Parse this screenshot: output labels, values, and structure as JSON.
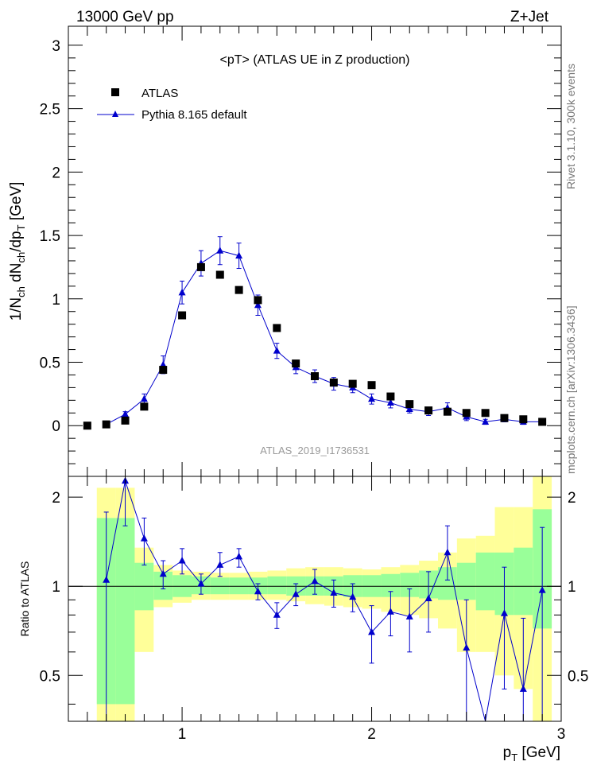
{
  "header": {
    "left": "13000 GeV pp",
    "right": "Z+Jet"
  },
  "side_text": {
    "rivet": "Rivet 3.1.10,  300k events",
    "mcplots": "mcplots.cern.ch [arXiv:1306.3436]"
  },
  "chart_data": [
    {
      "type": "scatter",
      "title": "<pT> (ATLAS UE in Z production)",
      "watermark": "ATLAS_2019_I1736531",
      "ylabel": "1/N_ch dN_ch/dp_T [GeV]",
      "xlim": [
        0.4,
        3.0
      ],
      "ylim": [
        -0.4,
        3.15
      ],
      "yticks": [
        "0",
        "0.5",
        "1",
        "1.5",
        "2",
        "2.5",
        "3"
      ],
      "legend_position": "top-left",
      "series": [
        {
          "name": "ATLAS",
          "marker": "square",
          "color": "#000000",
          "x": [
            0.5,
            0.6,
            0.7,
            0.8,
            0.9,
            1.0,
            1.1,
            1.2,
            1.3,
            1.4,
            1.5,
            1.6,
            1.7,
            1.8,
            1.9,
            2.0,
            2.1,
            2.2,
            2.3,
            2.4,
            2.5,
            2.6,
            2.7,
            2.8,
            2.9
          ],
          "y": [
            0.0,
            0.01,
            0.04,
            0.15,
            0.44,
            0.87,
            1.25,
            1.19,
            1.07,
            0.99,
            0.77,
            0.49,
            0.39,
            0.34,
            0.33,
            0.32,
            0.23,
            0.17,
            0.12,
            0.11,
            0.1,
            0.1,
            0.06,
            0.05,
            0.03
          ]
        },
        {
          "name": "Pythia 8.165 default",
          "marker": "triangle",
          "color": "#0000cc",
          "x": [
            0.6,
            0.7,
            0.8,
            0.9,
            1.0,
            1.1,
            1.2,
            1.3,
            1.4,
            1.5,
            1.6,
            1.7,
            1.8,
            1.9,
            2.0,
            2.1,
            2.2,
            2.3,
            2.4,
            2.5,
            2.6,
            2.7,
            2.8,
            2.9
          ],
          "y": [
            0.01,
            0.09,
            0.21,
            0.48,
            1.05,
            1.28,
            1.38,
            1.34,
            0.95,
            0.59,
            0.46,
            0.39,
            0.33,
            0.3,
            0.21,
            0.18,
            0.13,
            0.11,
            0.14,
            0.07,
            0.03,
            0.05,
            0.03,
            0.03
          ],
          "yerr": [
            0.01,
            0.02,
            0.04,
            0.07,
            0.09,
            0.1,
            0.11,
            0.1,
            0.08,
            0.06,
            0.05,
            0.05,
            0.05,
            0.04,
            0.04,
            0.04,
            0.03,
            0.03,
            0.04,
            0.03,
            0.02,
            0.02,
            0.02,
            0.02
          ]
        }
      ]
    },
    {
      "type": "line",
      "ylabel": "Ratio to ATLAS",
      "xlabel": "p_T [GeV]",
      "xlim": [
        0.4,
        3.0
      ],
      "ylim": [
        0.35,
        2.35
      ],
      "xticks": [
        "1",
        "2",
        "3"
      ],
      "yticks": [
        "0.5",
        "1",
        "2"
      ],
      "bands": {
        "bins": [
          0.55,
          0.65,
          0.75,
          0.85,
          0.95,
          1.05,
          1.15,
          1.25,
          1.35,
          1.45,
          1.55,
          1.65,
          1.75,
          1.85,
          1.95,
          2.05,
          2.15,
          2.25,
          2.35,
          2.45,
          2.55,
          2.65,
          2.75,
          2.85,
          2.95
        ],
        "green_color": "#99ff99",
        "yellow_color": "#ffff99",
        "green_low": [
          0.4,
          0.4,
          0.83,
          0.9,
          0.92,
          0.94,
          0.94,
          0.94,
          0.94,
          0.94,
          0.93,
          0.93,
          0.93,
          0.92,
          0.92,
          0.92,
          0.92,
          0.91,
          0.9,
          0.9,
          0.83,
          0.8,
          0.8,
          0.72
        ],
        "green_high": [
          1.7,
          1.7,
          1.2,
          1.12,
          1.09,
          1.08,
          1.07,
          1.07,
          1.07,
          1.08,
          1.08,
          1.08,
          1.08,
          1.09,
          1.09,
          1.1,
          1.11,
          1.13,
          1.16,
          1.2,
          1.3,
          1.3,
          1.35,
          1.82
        ],
        "yellow_low": [
          0.35,
          0.35,
          0.6,
          0.85,
          0.88,
          0.9,
          0.9,
          0.9,
          0.9,
          0.9,
          0.89,
          0.87,
          0.86,
          0.85,
          0.84,
          0.82,
          0.8,
          0.78,
          0.72,
          0.6,
          0.6,
          0.5,
          0.45,
          0.35
        ],
        "yellow_high": [
          2.15,
          2.15,
          1.35,
          1.18,
          1.13,
          1.12,
          1.11,
          1.11,
          1.12,
          1.13,
          1.15,
          1.16,
          1.16,
          1.15,
          1.14,
          1.16,
          1.18,
          1.22,
          1.3,
          1.45,
          1.48,
          1.85,
          1.85,
          2.35
        ]
      },
      "series": [
        {
          "name": "Pythia 8.165 default",
          "color": "#0000cc",
          "x": [
            0.6,
            0.7,
            0.8,
            0.9,
            1.0,
            1.1,
            1.2,
            1.3,
            1.4,
            1.5,
            1.6,
            1.7,
            1.8,
            1.9,
            2.0,
            2.1,
            2.2,
            2.3,
            2.4,
            2.5,
            2.6,
            2.7,
            2.8,
            2.9
          ],
          "y": [
            1.05,
            2.27,
            1.45,
            1.1,
            1.22,
            1.02,
            1.18,
            1.26,
            0.96,
            0.8,
            0.94,
            1.04,
            0.95,
            0.92,
            0.7,
            0.82,
            0.79,
            0.91,
            1.3,
            0.62,
            0.2,
            0.81,
            0.45,
            0.97
          ],
          "ylow": [
            0.2,
            1.6,
            1.18,
            0.98,
            1.1,
            0.94,
            1.08,
            1.16,
            0.9,
            0.72,
            0.86,
            0.94,
            0.85,
            0.82,
            0.55,
            0.68,
            0.6,
            0.7,
            1.05,
            0.35,
            0.2,
            0.45,
            0.2,
            0.35
          ],
          "yhigh": [
            1.78,
            2.35,
            1.7,
            1.22,
            1.34,
            1.1,
            1.3,
            1.34,
            1.02,
            0.88,
            1.02,
            1.14,
            1.05,
            1.02,
            0.86,
            0.96,
            0.98,
            1.12,
            1.6,
            0.9,
            0.35,
            1.16,
            0.78,
            1.58
          ]
        }
      ]
    }
  ]
}
